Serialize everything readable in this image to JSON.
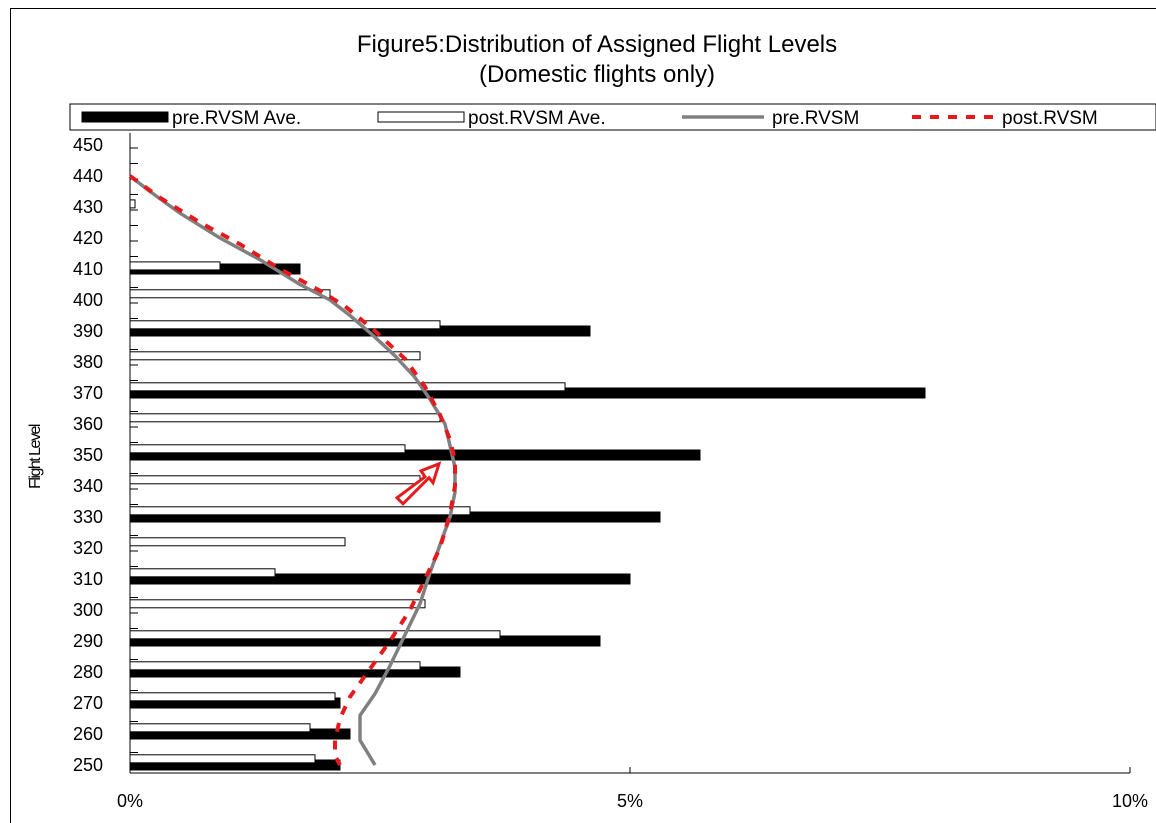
{
  "chart_data": {
    "type": "bar",
    "orientation": "horizontal",
    "title": "Figure5:Distribution of Assigned Flight Levels",
    "subtitle": "(Domestic flights only)",
    "ylabel": "Flight Level",
    "xlabel": "",
    "x_ticks": [
      "0%",
      "5%",
      "10%"
    ],
    "xlim": [
      0,
      10
    ],
    "y_ticks": [
      "450",
      "440",
      "430",
      "420",
      "410",
      "400",
      "390",
      "380",
      "370",
      "360",
      "350",
      "340",
      "330",
      "320",
      "310",
      "300",
      "290",
      "280",
      "270",
      "260",
      "250"
    ],
    "ylim": [
      248,
      452
    ],
    "legend_position": "top",
    "series": [
      {
        "name": "pre.RVSM Ave.",
        "kind": "bar",
        "color": "#000000",
        "y": [
          410,
          390,
          370,
          350,
          330,
          310,
          290,
          280,
          270,
          260,
          250
        ],
        "values": [
          1.7,
          4.6,
          7.95,
          5.7,
          5.3,
          5.0,
          4.7,
          3.3,
          2.1,
          2.2,
          2.1
        ]
      },
      {
        "name": "post.RVSM Ave.",
        "kind": "bar",
        "color": "#ffffff",
        "y": [
          431,
          411,
          402,
          392,
          382,
          372,
          362,
          352,
          342,
          332,
          322,
          312,
          302,
          292,
          282,
          272,
          262,
          252
        ],
        "values": [
          0.05,
          0.9,
          2.0,
          3.1,
          2.9,
          4.35,
          3.1,
          2.75,
          2.9,
          3.4,
          2.15,
          1.45,
          2.95,
          3.7,
          2.9,
          2.05,
          1.8,
          1.85
        ]
      },
      {
        "name": "pre.RVSM",
        "kind": "line",
        "color": "#808080",
        "x": [
          0.0,
          0.2,
          0.5,
          0.9,
          1.3,
          1.7,
          2.0,
          2.2,
          2.45,
          2.65,
          2.85,
          3.0,
          3.15,
          3.2,
          3.25,
          3.25,
          3.2,
          3.1,
          3.0,
          2.9,
          2.75,
          2.6,
          2.45,
          2.3,
          2.3,
          2.45
        ],
        "y": [
          440,
          435,
          428,
          420,
          413,
          405,
          400,
          395,
          388,
          382,
          375,
          368,
          360,
          353,
          346,
          338,
          330,
          321,
          312,
          302,
          292,
          282,
          273,
          266,
          258,
          250
        ]
      },
      {
        "name": "post.RVSM",
        "kind": "line",
        "color": "#e41a1c",
        "x": [
          0.0,
          0.3,
          0.7,
          1.1,
          1.5,
          1.9,
          2.15,
          2.45,
          2.75,
          2.95,
          3.1,
          3.2,
          3.25,
          3.25,
          3.2,
          3.1,
          2.95,
          2.8,
          2.6,
          2.4,
          2.2,
          2.1,
          2.05,
          2.05,
          2.1
        ],
        "y": [
          440,
          433,
          425,
          418,
          410,
          403,
          398,
          390,
          381,
          372,
          363,
          355,
          348,
          340,
          331,
          320,
          310,
          300,
          290,
          281,
          272,
          265,
          258,
          253,
          250
        ]
      }
    ]
  }
}
